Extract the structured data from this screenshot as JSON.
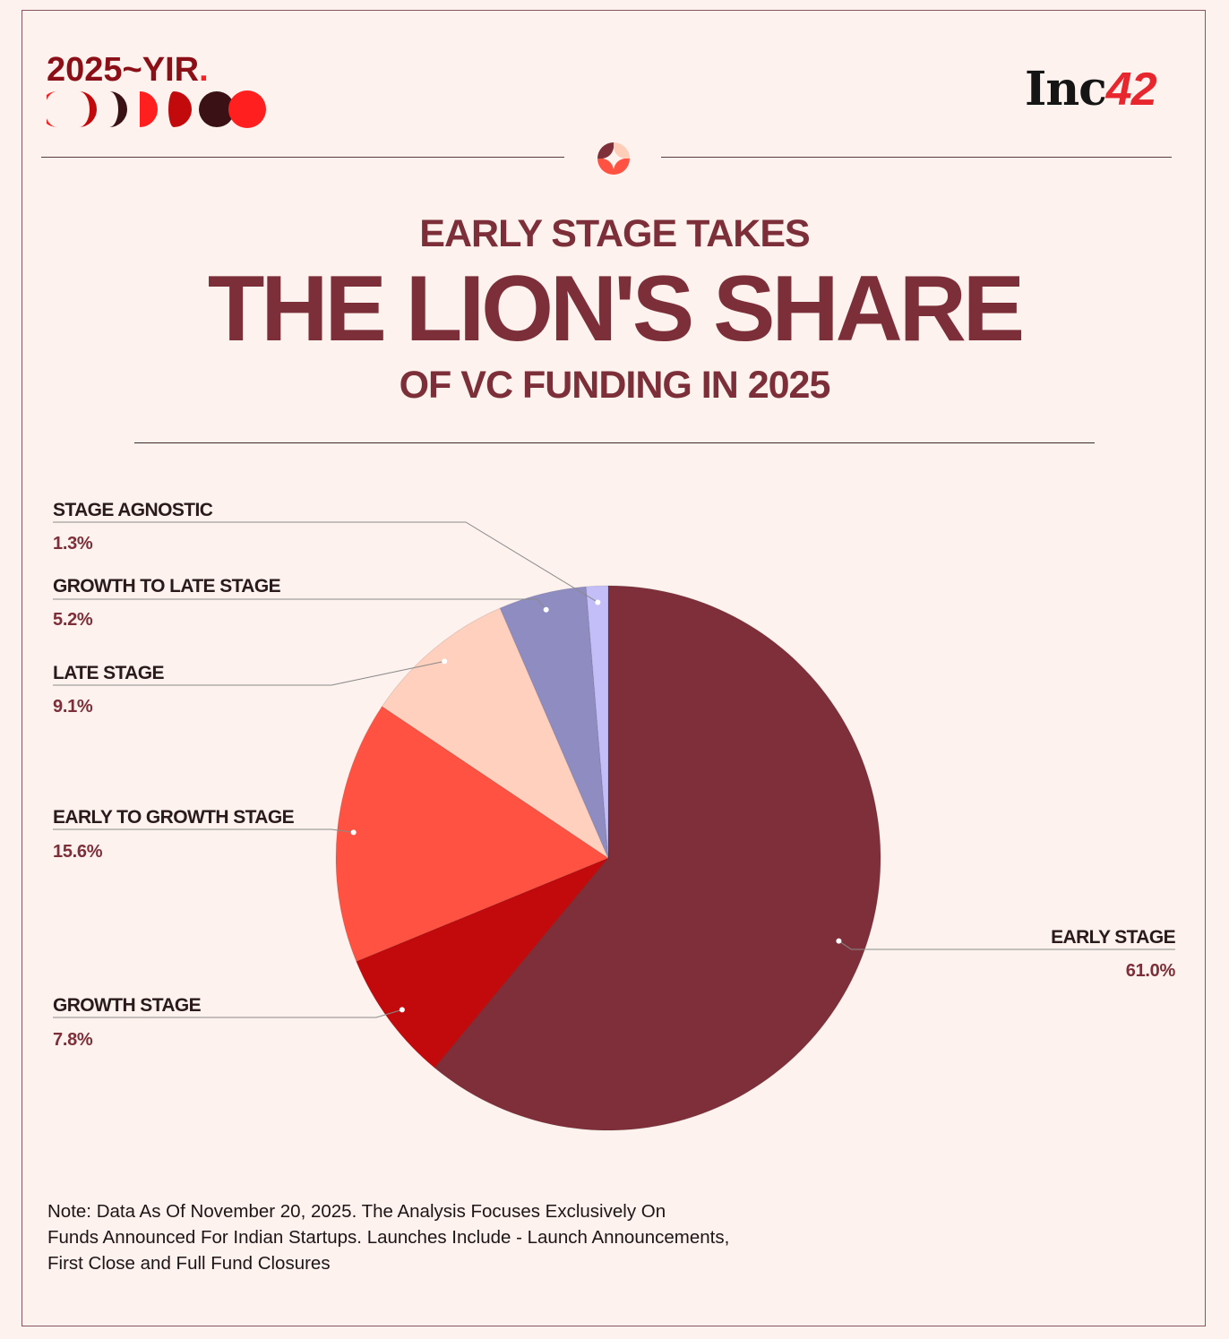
{
  "brand": {
    "text": "2025~YIR",
    "dot": "."
  },
  "publisher": {
    "name": "Inc",
    "number": "42"
  },
  "title": {
    "line1": "EARLY STAGE TAKES",
    "line2": "THE LION'S SHARE",
    "line3": "OF VC FUNDING IN 2025"
  },
  "colors": {
    "background": "#fdf2ee",
    "title": "#7d2f39",
    "early_stage": "#7e2f39",
    "growth_stage": "#c20a0d",
    "early_to_growth_stage": "#ff5242",
    "late_stage": "#ffd0be",
    "growth_to_late_stage": "#8f8cc1",
    "stage_agnostic": "#c3bef8"
  },
  "chart_data": {
    "type": "pie",
    "title": "",
    "slices": [
      {
        "label": "EARLY STAGE",
        "value": 61.0,
        "display": "61.0%",
        "color": "#7e2f39"
      },
      {
        "label": "GROWTH STAGE",
        "value": 7.8,
        "display": "7.8%",
        "color": "#c20a0d"
      },
      {
        "label": "EARLY TO GROWTH STAGE",
        "value": 15.6,
        "display": "15.6%",
        "color": "#ff5242"
      },
      {
        "label": "LATE STAGE",
        "value": 9.1,
        "display": "9.1%",
        "color": "#ffd0be"
      },
      {
        "label": "GROWTH TO LATE STAGE",
        "value": 5.2,
        "display": "5.2%",
        "color": "#8f8cc1"
      },
      {
        "label": "STAGE AGNOSTIC",
        "value": 1.3,
        "display": "1.3%",
        "color": "#c3bef8"
      }
    ],
    "start": "12 o'clock",
    "direction": "clockwise"
  },
  "note": {
    "line1": "Note: Data As Of November 20, 2025. The Analysis Focuses Exclusively On",
    "line2": "Funds Announced For Indian Startups. Launches Include - Launch Announcements,",
    "line3": "First Close and Full Fund Closures"
  }
}
